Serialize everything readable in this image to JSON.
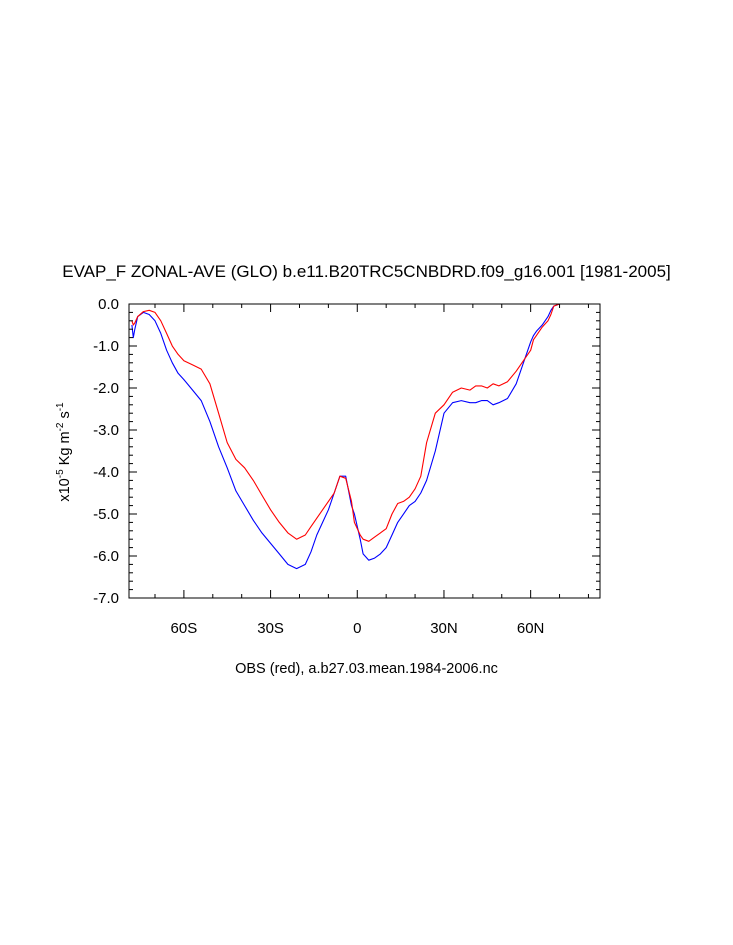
{
  "chart_data": {
    "type": "line",
    "title": "EVAP_F ZONAL-AVE (GLO) b.e11.B20TRC5CNBDRD.f09_g16.001 [1981-2005]",
    "footnote": "OBS (red), a.b27.03.mean.1984-2006.nc",
    "ylabel": {
      "prefix": "x10",
      "exp": "-5",
      "unit1": " Kg m",
      "exp2": "-2",
      "unit2": " s",
      "exp3": "-1"
    },
    "xlim": [
      -79,
      84
    ],
    "ylim": [
      -7.0,
      0.0
    ],
    "xticks": [
      {
        "value": -60,
        "label": "60S"
      },
      {
        "value": -30,
        "label": "30S"
      },
      {
        "value": 0,
        "label": "0"
      },
      {
        "value": 30,
        "label": "30N"
      },
      {
        "value": 60,
        "label": "60N"
      }
    ],
    "yticks": [
      {
        "value": 0.0,
        "label": "0.0"
      },
      {
        "value": -1.0,
        "label": "-1.0"
      },
      {
        "value": -2.0,
        "label": "-2.0"
      },
      {
        "value": -3.0,
        "label": "-3.0"
      },
      {
        "value": -4.0,
        "label": "-4.0"
      },
      {
        "value": -5.0,
        "label": "-5.0"
      },
      {
        "value": -6.0,
        "label": "-6.0"
      },
      {
        "value": -7.0,
        "label": "-7.0"
      }
    ],
    "grid": false,
    "series": [
      {
        "color": "#0000ff",
        "x": [
          -78,
          -77.5,
          -77,
          -76,
          -74,
          -72,
          -70,
          -68,
          -66,
          -64,
          -62,
          -60,
          -57,
          -54,
          -51,
          -48,
          -45,
          -42,
          -39,
          -36,
          -33,
          -30,
          -27,
          -24,
          -21,
          -18,
          -16,
          -14,
          -12,
          -10,
          -8,
          -6,
          -4,
          -2,
          -1,
          0,
          1,
          2,
          4,
          6,
          8,
          10,
          12,
          14,
          16,
          18,
          20,
          22,
          24,
          27,
          30,
          33,
          36,
          39,
          41,
          43,
          45,
          47,
          49,
          52,
          55,
          58,
          60,
          61,
          62,
          64,
          66,
          67,
          68,
          70,
          72,
          74,
          76,
          78,
          80,
          84
        ],
        "y": [
          -0.5,
          -0.8,
          -0.6,
          -0.3,
          -0.2,
          -0.25,
          -0.4,
          -0.7,
          -1.1,
          -1.4,
          -1.65,
          -1.8,
          -2.05,
          -2.3,
          -2.8,
          -3.4,
          -3.9,
          -4.45,
          -4.8,
          -5.15,
          -5.45,
          -5.7,
          -5.95,
          -6.2,
          -6.3,
          -6.2,
          -5.9,
          -5.5,
          -5.2,
          -4.9,
          -4.5,
          -4.1,
          -4.1,
          -4.8,
          -5.0,
          -5.3,
          -5.6,
          -5.95,
          -6.1,
          -6.05,
          -5.95,
          -5.8,
          -5.5,
          -5.2,
          -5.0,
          -4.8,
          -4.7,
          -4.5,
          -4.2,
          -3.5,
          -2.6,
          -2.35,
          -2.3,
          -2.35,
          -2.35,
          -2.3,
          -2.3,
          -2.4,
          -2.35,
          -2.25,
          -1.9,
          -1.3,
          -0.9,
          -0.75,
          -0.65,
          -0.5,
          -0.3,
          -0.15,
          -0.05,
          0.0,
          0.0,
          0.0,
          0.0,
          0.0,
          0.0,
          0.0
        ]
      },
      {
        "color": "#ff0000",
        "x": [
          -78,
          -77.5,
          -77,
          -76,
          -74,
          -72,
          -70,
          -68,
          -66,
          -64,
          -62,
          -60,
          -57,
          -54,
          -51,
          -48,
          -45,
          -42,
          -39,
          -36,
          -33,
          -30,
          -27,
          -24,
          -21,
          -18,
          -16,
          -14,
          -12,
          -10,
          -8,
          -6,
          -4,
          -2,
          -1,
          0,
          1,
          2,
          4,
          6,
          8,
          10,
          12,
          14,
          16,
          18,
          20,
          22,
          24,
          27,
          30,
          33,
          36,
          39,
          41,
          43,
          45,
          47,
          49,
          52,
          55,
          58,
          60,
          61,
          62,
          64,
          66,
          67,
          68,
          70,
          72,
          74,
          76,
          78,
          80,
          84
        ],
        "y": [
          -0.4,
          -0.5,
          -0.45,
          -0.3,
          -0.18,
          -0.15,
          -0.2,
          -0.4,
          -0.7,
          -1.0,
          -1.2,
          -1.35,
          -1.45,
          -1.55,
          -1.9,
          -2.6,
          -3.3,
          -3.7,
          -3.9,
          -4.2,
          -4.55,
          -4.9,
          -5.2,
          -5.45,
          -5.6,
          -5.5,
          -5.3,
          -5.1,
          -4.9,
          -4.7,
          -4.5,
          -4.1,
          -4.15,
          -4.7,
          -5.2,
          -5.35,
          -5.5,
          -5.6,
          -5.65,
          -5.55,
          -5.45,
          -5.35,
          -5.0,
          -4.75,
          -4.7,
          -4.6,
          -4.4,
          -4.1,
          -3.3,
          -2.6,
          -2.4,
          -2.1,
          -2.0,
          -2.05,
          -1.95,
          -1.95,
          -2.0,
          -1.9,
          -1.95,
          -1.85,
          -1.6,
          -1.3,
          -1.1,
          -0.85,
          -0.75,
          -0.55,
          -0.4,
          -0.25,
          -0.05,
          0.0,
          0.0,
          0.0,
          0.0,
          0.0,
          0.0,
          0.0
        ]
      }
    ]
  }
}
